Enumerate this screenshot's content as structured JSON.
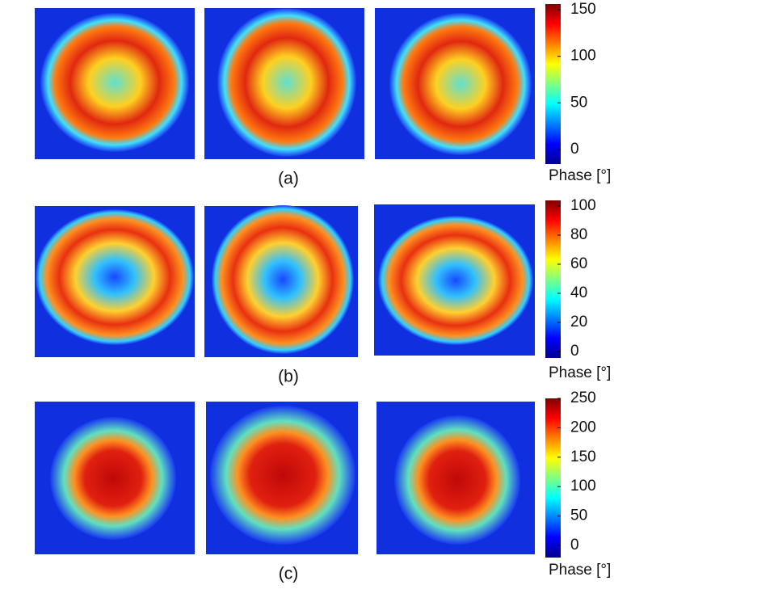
{
  "panels": [
    {
      "label": "(a)",
      "colorbar": {
        "ticks": [
          0,
          50,
          100,
          150
        ],
        "label": "Phase [°]"
      }
    },
    {
      "label": "(b)",
      "colorbar": {
        "ticks": [
          0,
          20,
          40,
          60,
          80,
          100
        ],
        "label": "Phase  [°]"
      }
    },
    {
      "label": "(c)",
      "colorbar": {
        "ticks": [
          0,
          50,
          100,
          150,
          200,
          250
        ],
        "label": "Phase  [°]"
      }
    }
  ]
}
